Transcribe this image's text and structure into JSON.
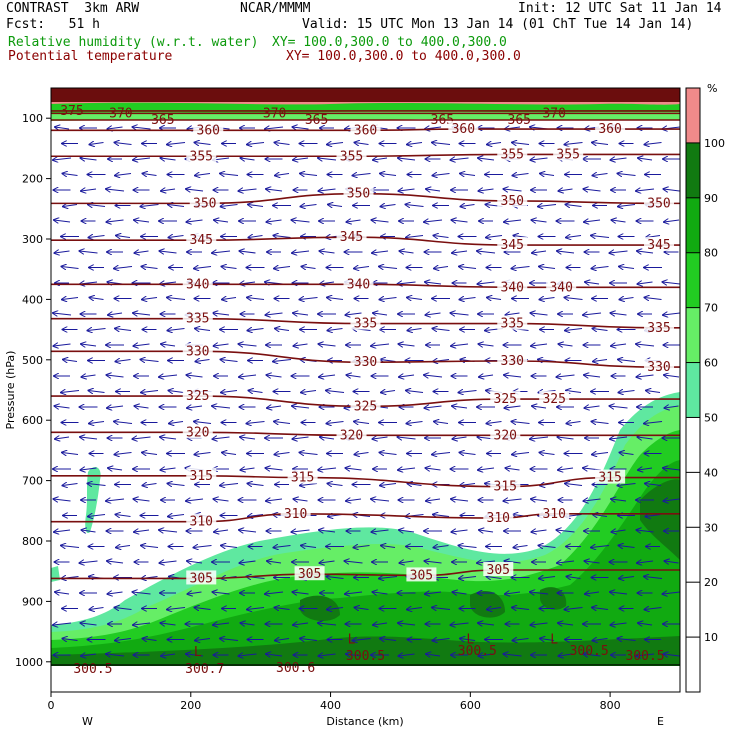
{
  "header": {
    "model": "CONTRAST  3km ARW",
    "forecast": "Fcst:   51 h",
    "org": "NCAR/MMMM",
    "init": "Init: 12 UTC Sat 11 Jan 14",
    "valid": "Valid: 15 UTC Mon 13 Jan 14 (01 ChT Tue 14 Jan 14)",
    "field1_name": "Relative humidity (w.r.t. water)",
    "field1_xy": "XY= 100.0,300.0 to 400.0,300.0",
    "field2_name": "Potential temperature",
    "field2_xy": "XY= 100.0,300.0 to 400.0,300.0"
  },
  "colors": {
    "theta_line": "#7a0f0f",
    "wind_arrow": "#1a1a9c",
    "rh_50": "#5fe8a0",
    "rh_60": "#66ee66",
    "rh_70": "#22cc22",
    "rh_80": "#11aa11",
    "rh_90": "#117a11",
    "rh_100": "#f08a8a"
  },
  "chart_data": {
    "type": "heatmap",
    "title": "",
    "xlabel": "Distance (km)",
    "ylabel": "Pressure (hPa)",
    "xlim": [
      0,
      900
    ],
    "ylim": [
      1050,
      50
    ],
    "x_ticks": [
      0,
      200,
      400,
      600,
      800
    ],
    "y_ticks": [
      100,
      200,
      300,
      400,
      500,
      600,
      700,
      800,
      900,
      1000
    ],
    "x_end_labels": [
      "W",
      "E"
    ],
    "colorbar": {
      "unit": "%",
      "ticks": [
        10,
        20,
        30,
        40,
        50,
        60,
        70,
        80,
        90,
        100
      ],
      "shaded_levels": [
        50,
        60,
        70,
        80,
        90,
        100
      ]
    },
    "isentropes": [
      {
        "theta": 375,
        "label": "375",
        "label_positions": [
          [
            30,
            88
          ]
        ]
      },
      {
        "theta": 370,
        "label": "370",
        "label_positions": [
          [
            100,
            92
          ],
          [
            320,
            92
          ],
          [
            720,
            92
          ]
        ]
      },
      {
        "theta": 365,
        "label": "365",
        "label_positions": [
          [
            160,
            103
          ],
          [
            380,
            103
          ],
          [
            560,
            103
          ],
          [
            670,
            103
          ]
        ]
      },
      {
        "theta": 360,
        "label": "360",
        "label_positions": [
          [
            225,
            120
          ],
          [
            450,
            120
          ],
          [
            590,
            118
          ],
          [
            800,
            118
          ]
        ]
      },
      {
        "theta": 355,
        "label": "355",
        "label_positions": [
          [
            215,
            163
          ],
          [
            430,
            163
          ],
          [
            660,
            160
          ],
          [
            740,
            160
          ]
        ]
      },
      {
        "theta": 350,
        "label": "350",
        "label_positions": [
          [
            220,
            241
          ],
          [
            440,
            225
          ],
          [
            660,
            237
          ],
          [
            870,
            241
          ]
        ]
      },
      {
        "theta": 345,
        "label": "345",
        "label_positions": [
          [
            215,
            302
          ],
          [
            430,
            297
          ],
          [
            660,
            310
          ],
          [
            870,
            310
          ]
        ]
      },
      {
        "theta": 340,
        "label": "340",
        "label_positions": [
          [
            210,
            375
          ],
          [
            440,
            375
          ],
          [
            660,
            380
          ],
          [
            730,
            380
          ]
        ]
      },
      {
        "theta": 335,
        "label": "335",
        "label_positions": [
          [
            210,
            432
          ],
          [
            450,
            440
          ],
          [
            660,
            440
          ],
          [
            870,
            447
          ]
        ]
      },
      {
        "theta": 330,
        "label": "330",
        "label_positions": [
          [
            210,
            486
          ],
          [
            450,
            504
          ],
          [
            660,
            502
          ],
          [
            870,
            512
          ]
        ]
      },
      {
        "theta": 325,
        "label": "325",
        "label_positions": [
          [
            210,
            560
          ],
          [
            450,
            577
          ],
          [
            650,
            565
          ],
          [
            720,
            565
          ]
        ]
      },
      {
        "theta": 320,
        "label": "320",
        "label_positions": [
          [
            210,
            620
          ],
          [
            430,
            625
          ],
          [
            650,
            625
          ]
        ]
      },
      {
        "theta": 315,
        "label": "315",
        "label_positions": [
          [
            215,
            692
          ],
          [
            360,
            695
          ],
          [
            650,
            710
          ],
          [
            800,
            695
          ]
        ]
      },
      {
        "theta": 310,
        "label": "310",
        "label_positions": [
          [
            215,
            768
          ],
          [
            350,
            755
          ],
          [
            640,
            762
          ],
          [
            720,
            755
          ]
        ]
      },
      {
        "theta": 305,
        "label": "305",
        "label_positions": [
          [
            215,
            862
          ],
          [
            370,
            855
          ],
          [
            530,
            857
          ],
          [
            640,
            848
          ]
        ]
      },
      {
        "theta": 300.5,
        "label": "300.5",
        "label_positions": [
          [
            60,
            1012
          ],
          [
            450,
            990
          ],
          [
            610,
            982
          ],
          [
            770,
            982
          ],
          [
            850,
            990
          ]
        ]
      },
      {
        "theta": 300.7,
        "label": "300.7",
        "label_positions": [
          [
            220,
            1012
          ]
        ]
      },
      {
        "theta": 300.6,
        "label": "300.6",
        "label_positions": [
          [
            350,
            1010
          ]
        ]
      }
    ],
    "low_markers": [
      {
        "label": "L",
        "x": 210,
        "p": 990
      },
      {
        "label": "L",
        "x": 430,
        "p": 970
      },
      {
        "label": "L",
        "x": 600,
        "p": 970
      },
      {
        "label": "L",
        "x": 720,
        "p": 970
      }
    ],
    "legend": "right"
  }
}
